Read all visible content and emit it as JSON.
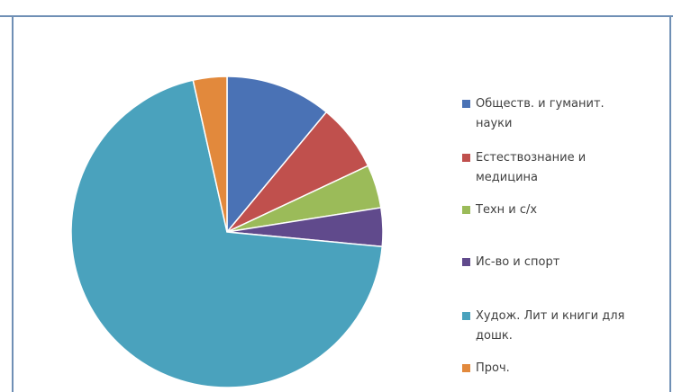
{
  "chart_data": {
    "type": "pie",
    "title": "",
    "legend_position": "right",
    "series": [
      {
        "values": [
          11,
          7,
          4.5,
          4,
          70,
          3.5
        ],
        "labels": [
          "Обществ. и гуманит. науки",
          "Естествознание и медицина",
          "Техн и с/х",
          "Ис-во и спорт",
          "Худож. Лит и книги для дошк.",
          "Проч."
        ],
        "colors": [
          "#4a72b5",
          "#c0504d",
          "#9bbb59",
          "#604a8c",
          "#4aa2bd",
          "#e2893c"
        ]
      }
    ]
  },
  "legend": [
    {
      "line1": "Обществ. и гуманит.",
      "line2": "науки",
      "color": "#4a72b5"
    },
    {
      "line1": "Естествознание и",
      "line2": "медицина",
      "color": "#c0504d"
    },
    {
      "line1": "Техн и с/х",
      "line2": "",
      "color": "#9bbb59"
    },
    {
      "line1": "Ис-во и спорт",
      "line2": "",
      "color": "#604a8c"
    },
    {
      "line1": "Худож. Лит и книги для",
      "line2": "дошк.",
      "color": "#4aa2bd"
    },
    {
      "line1": "Проч.",
      "line2": "",
      "color": "#e2893c"
    }
  ]
}
